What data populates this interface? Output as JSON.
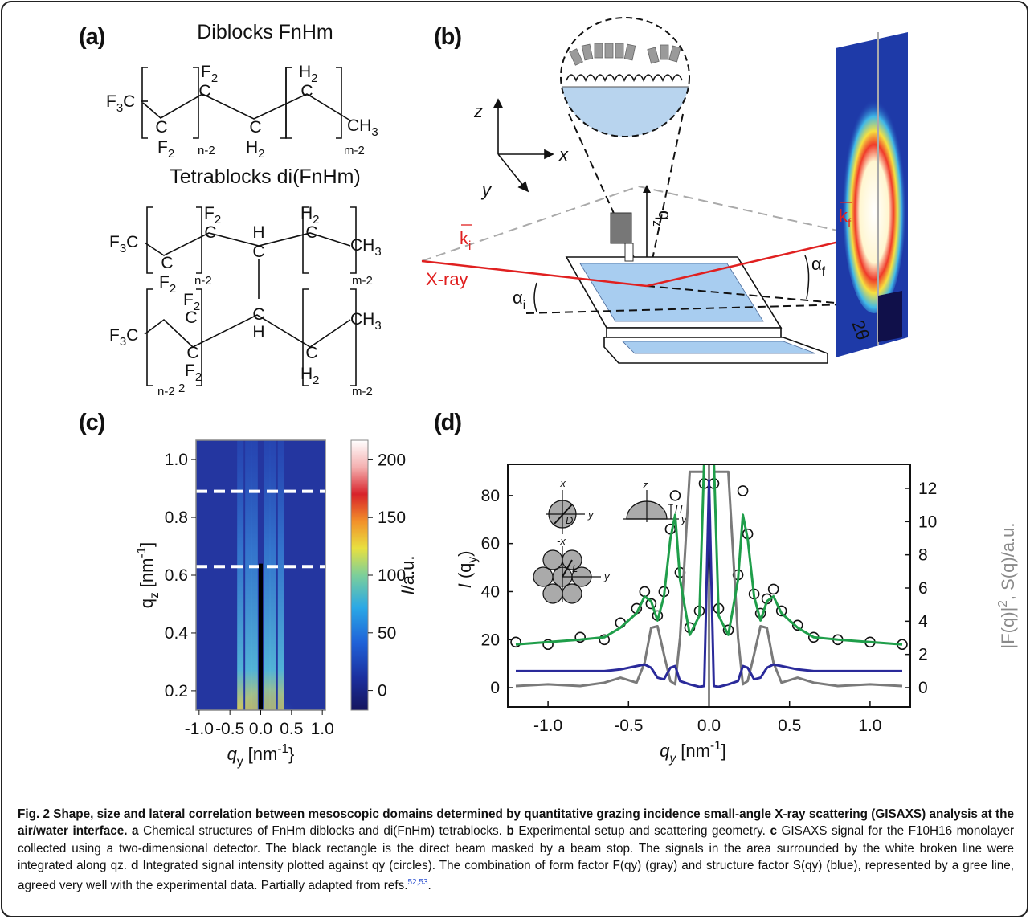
{
  "panel_labels": [
    "(a)",
    "(b)",
    "(c)",
    "(d)"
  ],
  "panel_a": {
    "diblock_title": "Diblocks FnHm",
    "diblock": [
      "F3C",
      "C",
      "F2",
      "n-2",
      "F2",
      "C",
      "C",
      "H2",
      "H2",
      "C",
      "CH3",
      "m-2"
    ],
    "tetrablock_title": "Tetrablocks di(FnHm)",
    "tetrablock": [
      "F3C",
      "C",
      "F2",
      "n-2",
      "F2",
      "C",
      "H",
      "C",
      "H2",
      "C",
      "CH3",
      "m-2",
      "F2",
      "C",
      "F3C",
      "C",
      "F2",
      "2",
      "n-2",
      "C",
      "H",
      "C",
      "H2",
      "m-2",
      "CH3"
    ]
  },
  "panel_b": {
    "z": "z",
    "x": "x",
    "y": "y",
    "k_i": [
      {
        "text": "k"
      },
      {
        "text": "i",
        "sub": true
      }
    ],
    "k_f": [
      {
        "text": "k"
      },
      {
        "text": "f",
        "sub": true
      }
    ],
    "q_z": [
      {
        "text": "q"
      },
      {
        "text": "z",
        "sub": true
      }
    ],
    "xray": "X-ray",
    "alpha_i": [
      {
        "text": "α"
      },
      {
        "text": "i",
        "sub": true
      }
    ],
    "alpha_f": [
      {
        "text": "α"
      },
      {
        "text": "f",
        "sub": true
      }
    ],
    "two_theta": "2θ"
  },
  "chart_data": [
    {
      "type": "heatmap",
      "xlim": [
        -1.05,
        1.05
      ],
      "ylim": [
        0.133,
        1.067
      ],
      "xticks": [
        {
          "value": -1,
          "label": "-1.0"
        },
        {
          "value": -0.5,
          "label": "-0.5"
        },
        {
          "value": 0,
          "label": "0.0"
        },
        {
          "value": 0.5,
          "label": "0.5"
        },
        {
          "value": 1,
          "label": "1.0"
        }
      ],
      "yticks": [
        0.2,
        0.4,
        0.6,
        0.8,
        {
          "value": 1,
          "label": "1.0"
        }
      ],
      "xlabel": [
        {
          "text": "q",
          "italic": true
        },
        {
          "text": "y",
          "sub": true
        },
        {
          "text": " [nm"
        },
        {
          "text": "-1",
          "sup": true
        },
        {
          "text": "}"
        }
      ],
      "ylabel": [
        {
          "text": "q"
        },
        {
          "text": "z",
          "sub": true
        },
        {
          "text": " [nm"
        },
        {
          "text": "-1",
          "sup": true
        },
        {
          "text": "]"
        }
      ],
      "colorbar": {
        "lim": [
          -17,
          217
        ],
        "ticks": [
          0,
          50,
          100,
          150,
          200
        ],
        "label": [
          {
            "text": "I",
            "italic": true
          },
          {
            "text": "/a.u."
          }
        ]
      },
      "bright_streaks_qy": [
        -0.33,
        -0.2,
        -0.1,
        0.1,
        0.2,
        0.33
      ],
      "integration_qz": [
        0.63,
        0.89
      ],
      "beam_stop_qz": 0.64
    },
    {
      "type": "line",
      "xlim": [
        -1.25,
        1.25
      ],
      "ylim": [
        -8,
        93
      ],
      "y2lim": [
        -1.16,
        13.45
      ],
      "xticks": [
        {
          "value": -1,
          "label": "-1.0"
        },
        {
          "value": -0.5,
          "label": "-0.5"
        },
        {
          "value": 0,
          "label": "0.0"
        },
        {
          "value": 0.5,
          "label": "0.5"
        },
        {
          "value": 1,
          "label": "1.0"
        }
      ],
      "yticks": [
        0,
        20,
        40,
        60,
        80
      ],
      "y2ticks": [
        0,
        2,
        4,
        6,
        8,
        10,
        12
      ],
      "xlabel": [
        {
          "text": "q",
          "italic": true
        },
        {
          "text": "y",
          "sub": true,
          "italic": true
        },
        {
          "text": " [nm"
        },
        {
          "text": "-1",
          "sup": true
        },
        {
          "text": "]"
        }
      ],
      "ylabel": [
        {
          "text": "I",
          "italic": true
        },
        {
          "text": " (q"
        },
        {
          "text": "y",
          "sub": true
        },
        {
          "text": ")"
        }
      ],
      "y2label": [
        {
          "text": "|F(q)|"
        },
        {
          "text": "2",
          "sup": true
        },
        {
          "text": ", S(q)/a.u."
        }
      ],
      "y2label_color": "#8a8a8a",
      "insets": [
        "-x",
        "D",
        "y",
        "z",
        "H",
        "y",
        "-x",
        "L",
        "y"
      ],
      "x": [
        -1.2,
        -1.0,
        -0.8,
        -0.65,
        -0.55,
        -0.45,
        -0.4,
        -0.36,
        -0.32,
        -0.28,
        -0.24,
        -0.21,
        -0.18,
        -0.12,
        -0.06,
        -0.03,
        0,
        0.03,
        0.06,
        0.12,
        0.18,
        0.21,
        0.24,
        0.28,
        0.32,
        0.36,
        0.4,
        0.45,
        0.55,
        0.65,
        0.8,
        1.0,
        1.2
      ],
      "series": [
        {
          "style": "markers",
          "color": "#111111",
          "values": [
            19,
            18,
            21,
            20,
            27,
            33,
            40,
            35,
            30,
            40,
            66,
            80,
            48,
            25,
            32,
            85,
            null,
            85,
            33,
            24,
            47,
            82,
            64,
            39,
            31,
            37,
            41,
            32,
            26,
            21,
            20,
            19,
            18
          ]
        },
        {
          "style": "line",
          "color": "#7a7a7a",
          "axis": "y2",
          "values": [
            0.1,
            0.2,
            0.1,
            0.3,
            0.6,
            0.3,
            1.5,
            3.6,
            3.7,
            2.0,
            0.4,
            0.2,
            3.0,
            13,
            13,
            13,
            null,
            13,
            13,
            13,
            3.0,
            0.2,
            0.4,
            2.0,
            3.7,
            3.6,
            1.5,
            0.3,
            0.6,
            0.3,
            0.1,
            0.2,
            0.1
          ]
        },
        {
          "style": "line",
          "color": "#2a2a9a",
          "axis": "y2",
          "values": [
            1.0,
            1.0,
            1.0,
            1.0,
            1.1,
            1.3,
            1.4,
            1.2,
            0.6,
            0.5,
            1.2,
            1.3,
            0.4,
            0.2,
            0.05,
            0.1,
            12.5,
            0.1,
            0.05,
            0.2,
            0.4,
            1.3,
            1.2,
            0.5,
            0.6,
            1.2,
            1.4,
            1.3,
            1.1,
            1.0,
            1.0,
            1.0,
            1.0
          ]
        },
        {
          "style": "line",
          "color": "#1f9e4a",
          "values": [
            18,
            19,
            20,
            21,
            25,
            31,
            38,
            36,
            28,
            38,
            62,
            72,
            45,
            22,
            30,
            95,
            null,
            95,
            30,
            22,
            45,
            72,
            62,
            38,
            28,
            36,
            38,
            31,
            25,
            21,
            20,
            19,
            18
          ]
        }
      ]
    }
  ],
  "caption": {
    "title": "Fig. 2 Shape, size and lateral correlation between mesoscopic domains determined by quantitative grazing incidence small-angle X-ray scattering (GISAXS) analysis at the air/water interface.",
    "parts": [
      {
        "label": "a",
        "text": "Chemical structures of FnHm diblocks and di(FnHm) tetrablocks."
      },
      {
        "label": "b",
        "text": "Experimental setup and scattering geometry."
      },
      {
        "label": "c",
        "text": "GISAXS signal for the F10H16 monolayer collected using a two-dimensional detector. The black rectangle is the direct beam masked by a beam stop. The signals in the area surrounded by the white broken line were integrated along qz."
      },
      {
        "label": "d",
        "text": "Integrated signal intensity plotted against qy (circles). The combination of form factor F(qy) (gray) and structure factor S(qy) (blue), represented by a gree line, agreed very well with the experimental data. Partially adapted from refs."
      }
    ],
    "refs": "52,53",
    "after_refs": "."
  }
}
